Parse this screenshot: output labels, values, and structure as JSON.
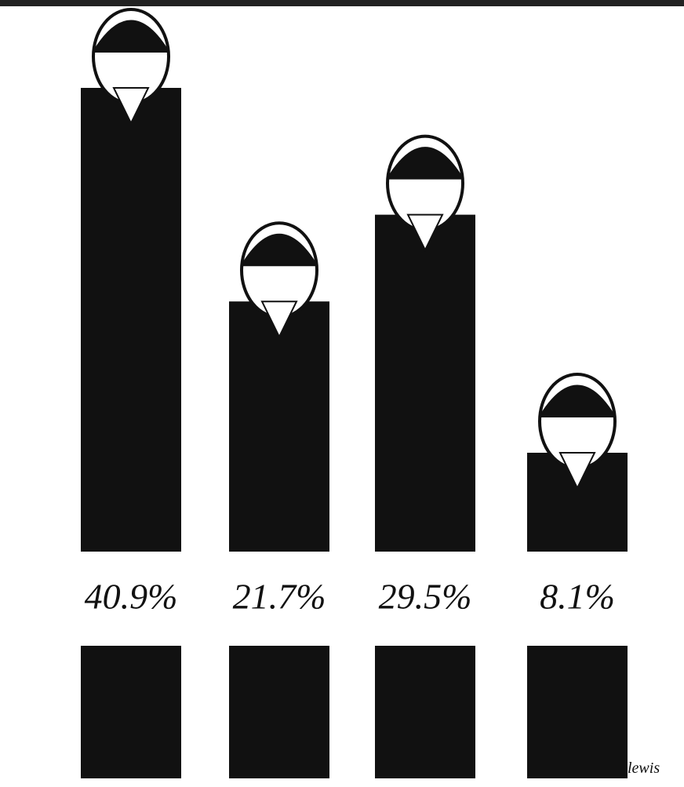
{
  "chart_data": {
    "type": "bar",
    "categories": [
      null,
      null,
      null,
      null
    ],
    "values": [
      40.9,
      21.7,
      29.5,
      8.1
    ],
    "value_labels": [
      "40.9%",
      "21.7%",
      "29.5%",
      "8.1%"
    ],
    "color": "#111111",
    "credit": "lewis"
  }
}
